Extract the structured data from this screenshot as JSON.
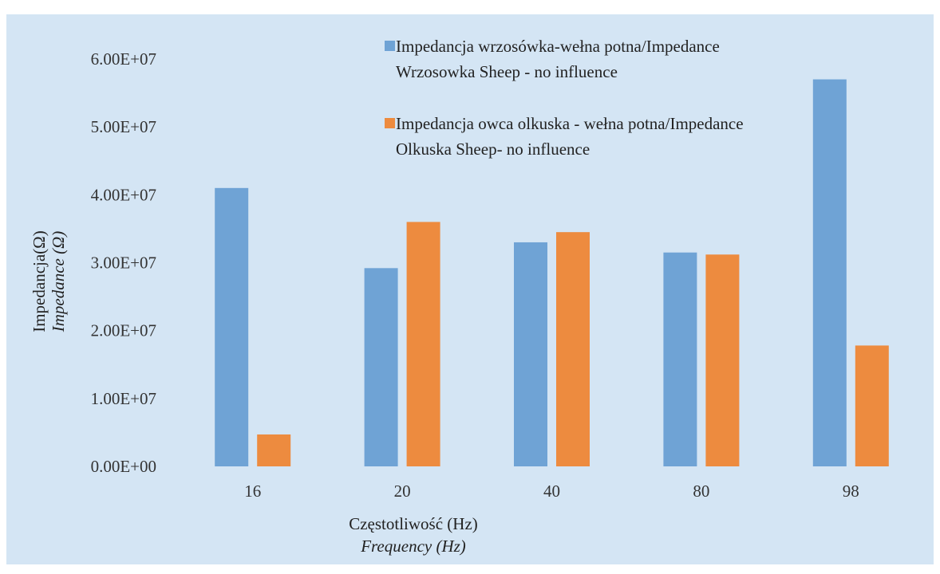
{
  "chart_data": {
    "type": "bar",
    "categories": [
      "16",
      "20",
      "40",
      "80",
      "98"
    ],
    "series": [
      {
        "name": "Impedancja wrzosówka-wełna potna/Impedance Wrzosowka Sheep - no influence",
        "legend_lines": [
          "Impedancja wrzosówka-wełna potna/Impedance",
          "Wrzosowka Sheep - no influence"
        ],
        "color": "#6FA3D5",
        "values": [
          41000000,
          29200000,
          33000000,
          31500000,
          57000000
        ]
      },
      {
        "name": "Impedancja owca olkuska - wełna potna/Impedance Olkuska Sheep- no influence",
        "legend_lines": [
          "Impedancja owca olkuska - wełna potna/Impedance",
          "Olkuska Sheep- no influence"
        ],
        "color": "#ED8B3F",
        "values": [
          4700000,
          36000000,
          34500000,
          31200000,
          17800000
        ]
      }
    ],
    "ylim": [
      0,
      60000000
    ],
    "y_ticks": [
      "0.00E+00",
      "1.00E+07",
      "2.00E+07",
      "3.00E+07",
      "4.00E+07",
      "5.00E+07",
      "6.00E+07"
    ],
    "xlabel": [
      "Częstotliwość (Hz)",
      "Frequency (Hz)"
    ],
    "ylabel": [
      "Impedancja(Ω)",
      "Impedance (Ω)"
    ],
    "grid": false,
    "legend_position": "top-right",
    "background": "#D4E5F4"
  }
}
